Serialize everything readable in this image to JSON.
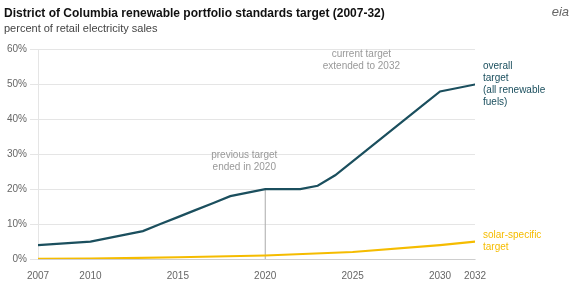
{
  "chart_data": {
    "type": "line",
    "title": "District of Columbia renewable portfolio standards target (2007-32)",
    "subtitle": "percent of retail electricity sales",
    "series": [
      {
        "name": "overall\ntarget\n(all renewable\nfuels)",
        "color": "#1b4f5e",
        "x": [
          2007,
          2010,
          2011,
          2012,
          2013,
          2014,
          2015,
          2016,
          2017,
          2018,
          2019,
          2020,
          2022,
          2023,
          2024,
          2025,
          2026,
          2027,
          2028,
          2029,
          2030,
          2031,
          2032
        ],
        "values": [
          4,
          5,
          6,
          7,
          8,
          10,
          12,
          14,
          16,
          18,
          19,
          20,
          20,
          21,
          24,
          28,
          32,
          36,
          40,
          44,
          48,
          49,
          50
        ]
      },
      {
        "name": "solar-specific\ntarget",
        "color": "#f5bc00",
        "x": [
          2007,
          2010,
          2015,
          2020,
          2025,
          2030,
          2032
        ],
        "values": [
          0.04,
          0.1,
          0.5,
          1.0,
          2.0,
          4.0,
          5.0
        ]
      }
    ],
    "xlim": [
      2007,
      2032
    ],
    "ylim": [
      0,
      60
    ],
    "xticks": [
      2007,
      2010,
      2015,
      2020,
      2025,
      2030,
      2032
    ],
    "yticks": [
      {
        "value": 0,
        "label": "0%"
      },
      {
        "value": 10,
        "label": "10%"
      },
      {
        "value": 20,
        "label": "20%"
      },
      {
        "value": 30,
        "label": "30%"
      },
      {
        "value": 40,
        "label": "40%"
      },
      {
        "value": 50,
        "label": "50%"
      },
      {
        "value": 60,
        "label": "60%"
      }
    ],
    "grid": true,
    "annotations": [
      {
        "text": "previous target\nended in 2020",
        "x": 2018.8,
        "y": 28,
        "color": "#999999"
      },
      {
        "text": "current target\nextended to 2032",
        "x": 2025.5,
        "y": 57,
        "color": "#999999"
      },
      {
        "text": "eia",
        "color": "#666666"
      }
    ],
    "reference_lines": [
      {
        "x": 2020,
        "y": [
          0,
          20
        ],
        "color": "#aaaaaa"
      }
    ]
  }
}
